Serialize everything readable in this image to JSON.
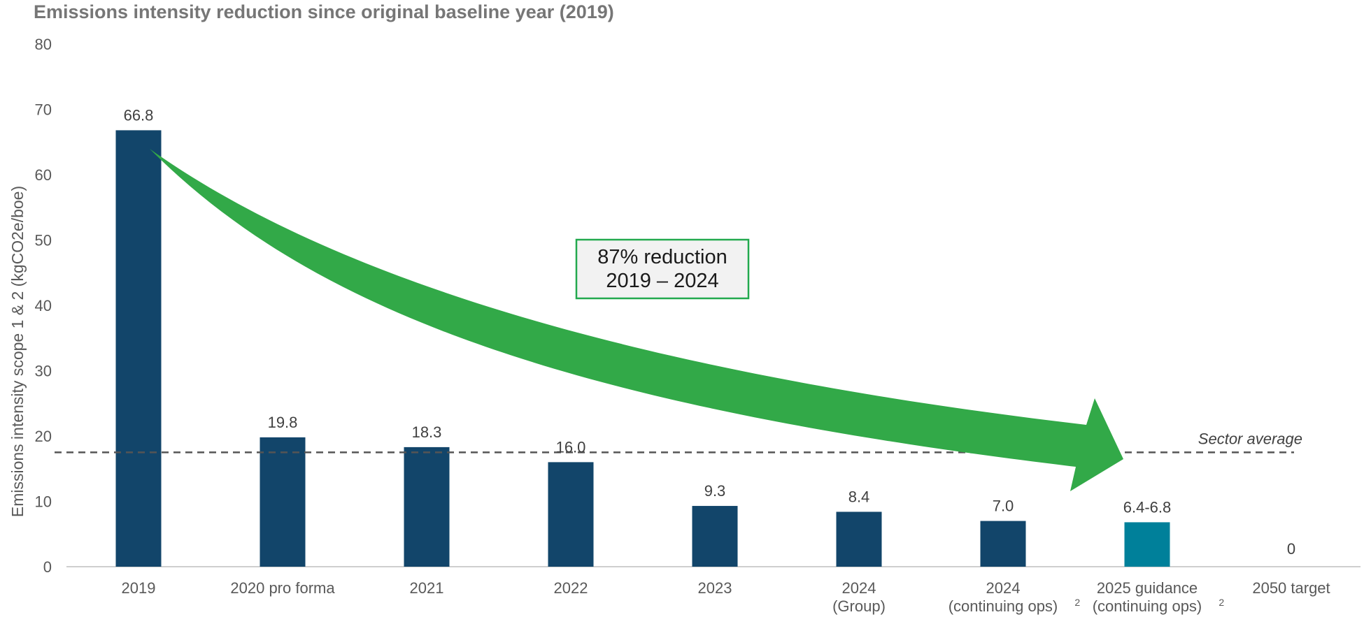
{
  "chart_data": {
    "type": "bar",
    "title": "Emissions intensity reduction since original baseline year (2019)",
    "ylabel": "Emissions intensity scope 1 & 2 (kgCO2e/boe)",
    "xlabel": "",
    "ylim": [
      0,
      80
    ],
    "yticks": [
      0,
      10,
      20,
      30,
      40,
      50,
      60,
      70,
      80
    ],
    "categories": [
      [
        "2019"
      ],
      [
        "2020 pro forma"
      ],
      [
        "2021"
      ],
      [
        "2022"
      ],
      [
        "2023"
      ],
      [
        "2024",
        "(Group)"
      ],
      [
        "2024",
        "(continuing ops)"
      ],
      [
        "2025 guidance",
        "(continuing ops)"
      ],
      [
        "2050 target"
      ]
    ],
    "category_superscripts": [
      "",
      "",
      "",
      "",
      "",
      "",
      "2",
      "2",
      ""
    ],
    "values": [
      66.8,
      19.8,
      18.3,
      16.0,
      9.3,
      8.4,
      7.0,
      6.8,
      0
    ],
    "range_low": [
      null,
      null,
      null,
      null,
      null,
      null,
      null,
      6.4,
      null
    ],
    "data_labels": [
      "66.8",
      "19.8",
      "18.3",
      "16.0",
      "9.3",
      "8.4",
      "7.0",
      "6.4-6.8",
      "0"
    ],
    "bar_colors": [
      "#12456A",
      "#12456A",
      "#12456A",
      "#12456A",
      "#12456A",
      "#12456A",
      "#12456A",
      "#00809A",
      "#12456A"
    ],
    "reference_line": {
      "label": "Sector average",
      "value": 17.5,
      "style": "dashed",
      "color": "#555555"
    },
    "annotation": {
      "lines": [
        "87% reduction",
        "2019 – 2024"
      ],
      "border_color": "#22A94E",
      "fill": "#F2F2F2"
    },
    "arrow_color": "#32A948",
    "grid": false,
    "legend": "none"
  }
}
